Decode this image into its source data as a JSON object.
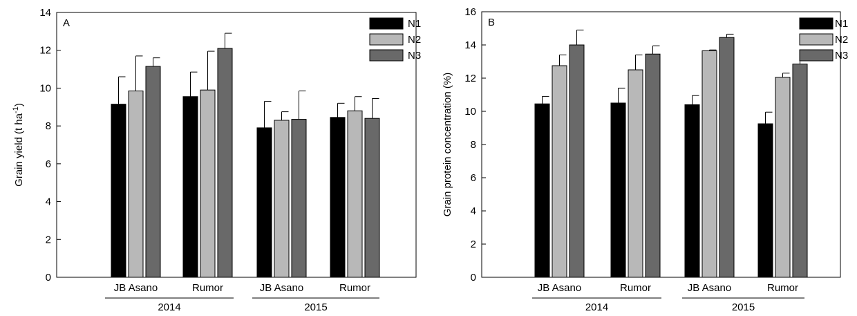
{
  "chart_data": [
    {
      "type": "bar",
      "panel_label": "A",
      "ylabel": "Grain yield (t ha",
      "ylabel_sup": "-1",
      "ylabel_close": ")",
      "ylim": [
        0,
        14
      ],
      "yticks": [
        "0",
        "2",
        "4",
        "6",
        "8",
        "10",
        "12",
        "14"
      ],
      "categories": [
        "JB Asano",
        "Rumor",
        "JB Asano",
        "Rumor"
      ],
      "groups": [
        {
          "label": "2014",
          "categories": [
            0,
            1
          ]
        },
        {
          "label": "2015",
          "categories": [
            2,
            3
          ]
        }
      ],
      "legend_position": "top-right",
      "series": [
        {
          "name": "N1",
          "color": "#000000",
          "values": [
            9.15,
            9.55,
            7.9,
            8.45
          ],
          "errors": [
            1.45,
            1.3,
            1.4,
            0.75
          ]
        },
        {
          "name": "N2",
          "color": "#b8b8b8",
          "values": [
            9.85,
            9.9,
            8.3,
            8.8
          ],
          "errors": [
            1.85,
            2.05,
            0.45,
            0.75
          ]
        },
        {
          "name": "N3",
          "color": "#696969",
          "values": [
            11.15,
            12.1,
            8.35,
            8.4
          ],
          "errors": [
            0.45,
            0.8,
            1.5,
            1.05
          ]
        }
      ]
    },
    {
      "type": "bar",
      "panel_label": "B",
      "ylabel": "Grain protein concentration (%)",
      "ylim": [
        0,
        16
      ],
      "yticks": [
        "0",
        "2",
        "4",
        "6",
        "8",
        "10",
        "12",
        "14",
        "16"
      ],
      "categories": [
        "JB Asano",
        "Rumor",
        "JB Asano",
        "Rumor"
      ],
      "groups": [
        {
          "label": "2014",
          "categories": [
            0,
            1
          ]
        },
        {
          "label": "2015",
          "categories": [
            2,
            3
          ]
        }
      ],
      "legend_position": "top-right",
      "series": [
        {
          "name": "N1",
          "color": "#000000",
          "values": [
            10.45,
            10.5,
            10.4,
            9.25
          ],
          "errors": [
            0.45,
            0.9,
            0.55,
            0.7
          ]
        },
        {
          "name": "N2",
          "color": "#b8b8b8",
          "values": [
            12.75,
            12.5,
            13.65,
            12.05
          ],
          "errors": [
            0.65,
            0.9,
            0.05,
            0.25
          ]
        },
        {
          "name": "N3",
          "color": "#696969",
          "values": [
            14.0,
            13.45,
            14.45,
            12.85
          ],
          "errors": [
            0.9,
            0.5,
            0.2,
            0.2
          ]
        }
      ]
    }
  ]
}
